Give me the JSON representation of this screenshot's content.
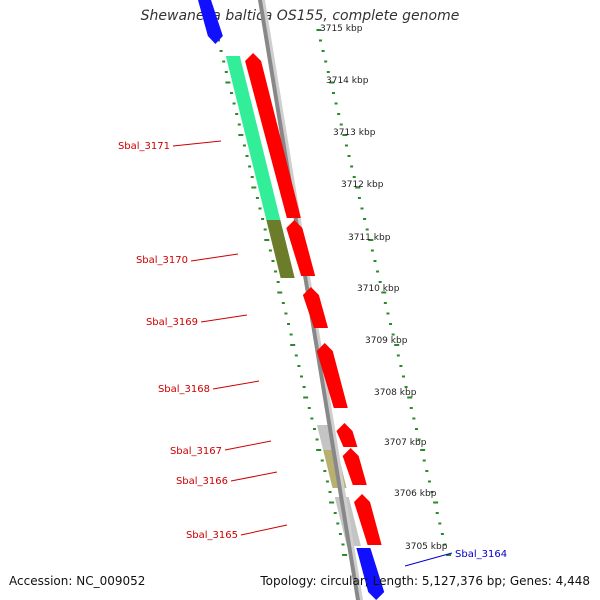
{
  "header": {
    "title": "Shewanella baltica OS155, complete genome"
  },
  "footer": {
    "accession": "Accession: NC_009052",
    "summary": "Topology: circular; Length: 5,127,376 bp; Genes: 4,448"
  },
  "colors": {
    "cds": "#ff0000",
    "neighbor_cds": "#1010ff",
    "backbone": "#888888",
    "ticks": "#2a8a2a",
    "gene_label": "#cc0000",
    "neighbor_label": "#0000cc",
    "hit_green": "#33ee99",
    "hit_olive": "#6b7d2a",
    "hit_grey": "#c4c4c4",
    "hit_khaki": "#b8b070"
  },
  "scale_labels": [
    "3715 kbp",
    "3714 kbp",
    "3713 kbp",
    "3712 kbp",
    "3711 kbp",
    "3710 kbp",
    "3709 kbp",
    "3708 kbp",
    "3707 kbp",
    "3706 kbp",
    "3705 kbp"
  ],
  "genes": [
    {
      "label": "Sbal_3171",
      "neighbor": false
    },
    {
      "label": "Sbal_3170",
      "neighbor": false
    },
    {
      "label": "Sbal_3169",
      "neighbor": false
    },
    {
      "label": "Sbal_3168",
      "neighbor": false
    },
    {
      "label": "Sbal_3167",
      "neighbor": false
    },
    {
      "label": "Sbal_3166",
      "neighbor": false
    },
    {
      "label": "Sbal_3165",
      "neighbor": false
    },
    {
      "label": "Sbal_3164",
      "neighbor": true
    }
  ]
}
